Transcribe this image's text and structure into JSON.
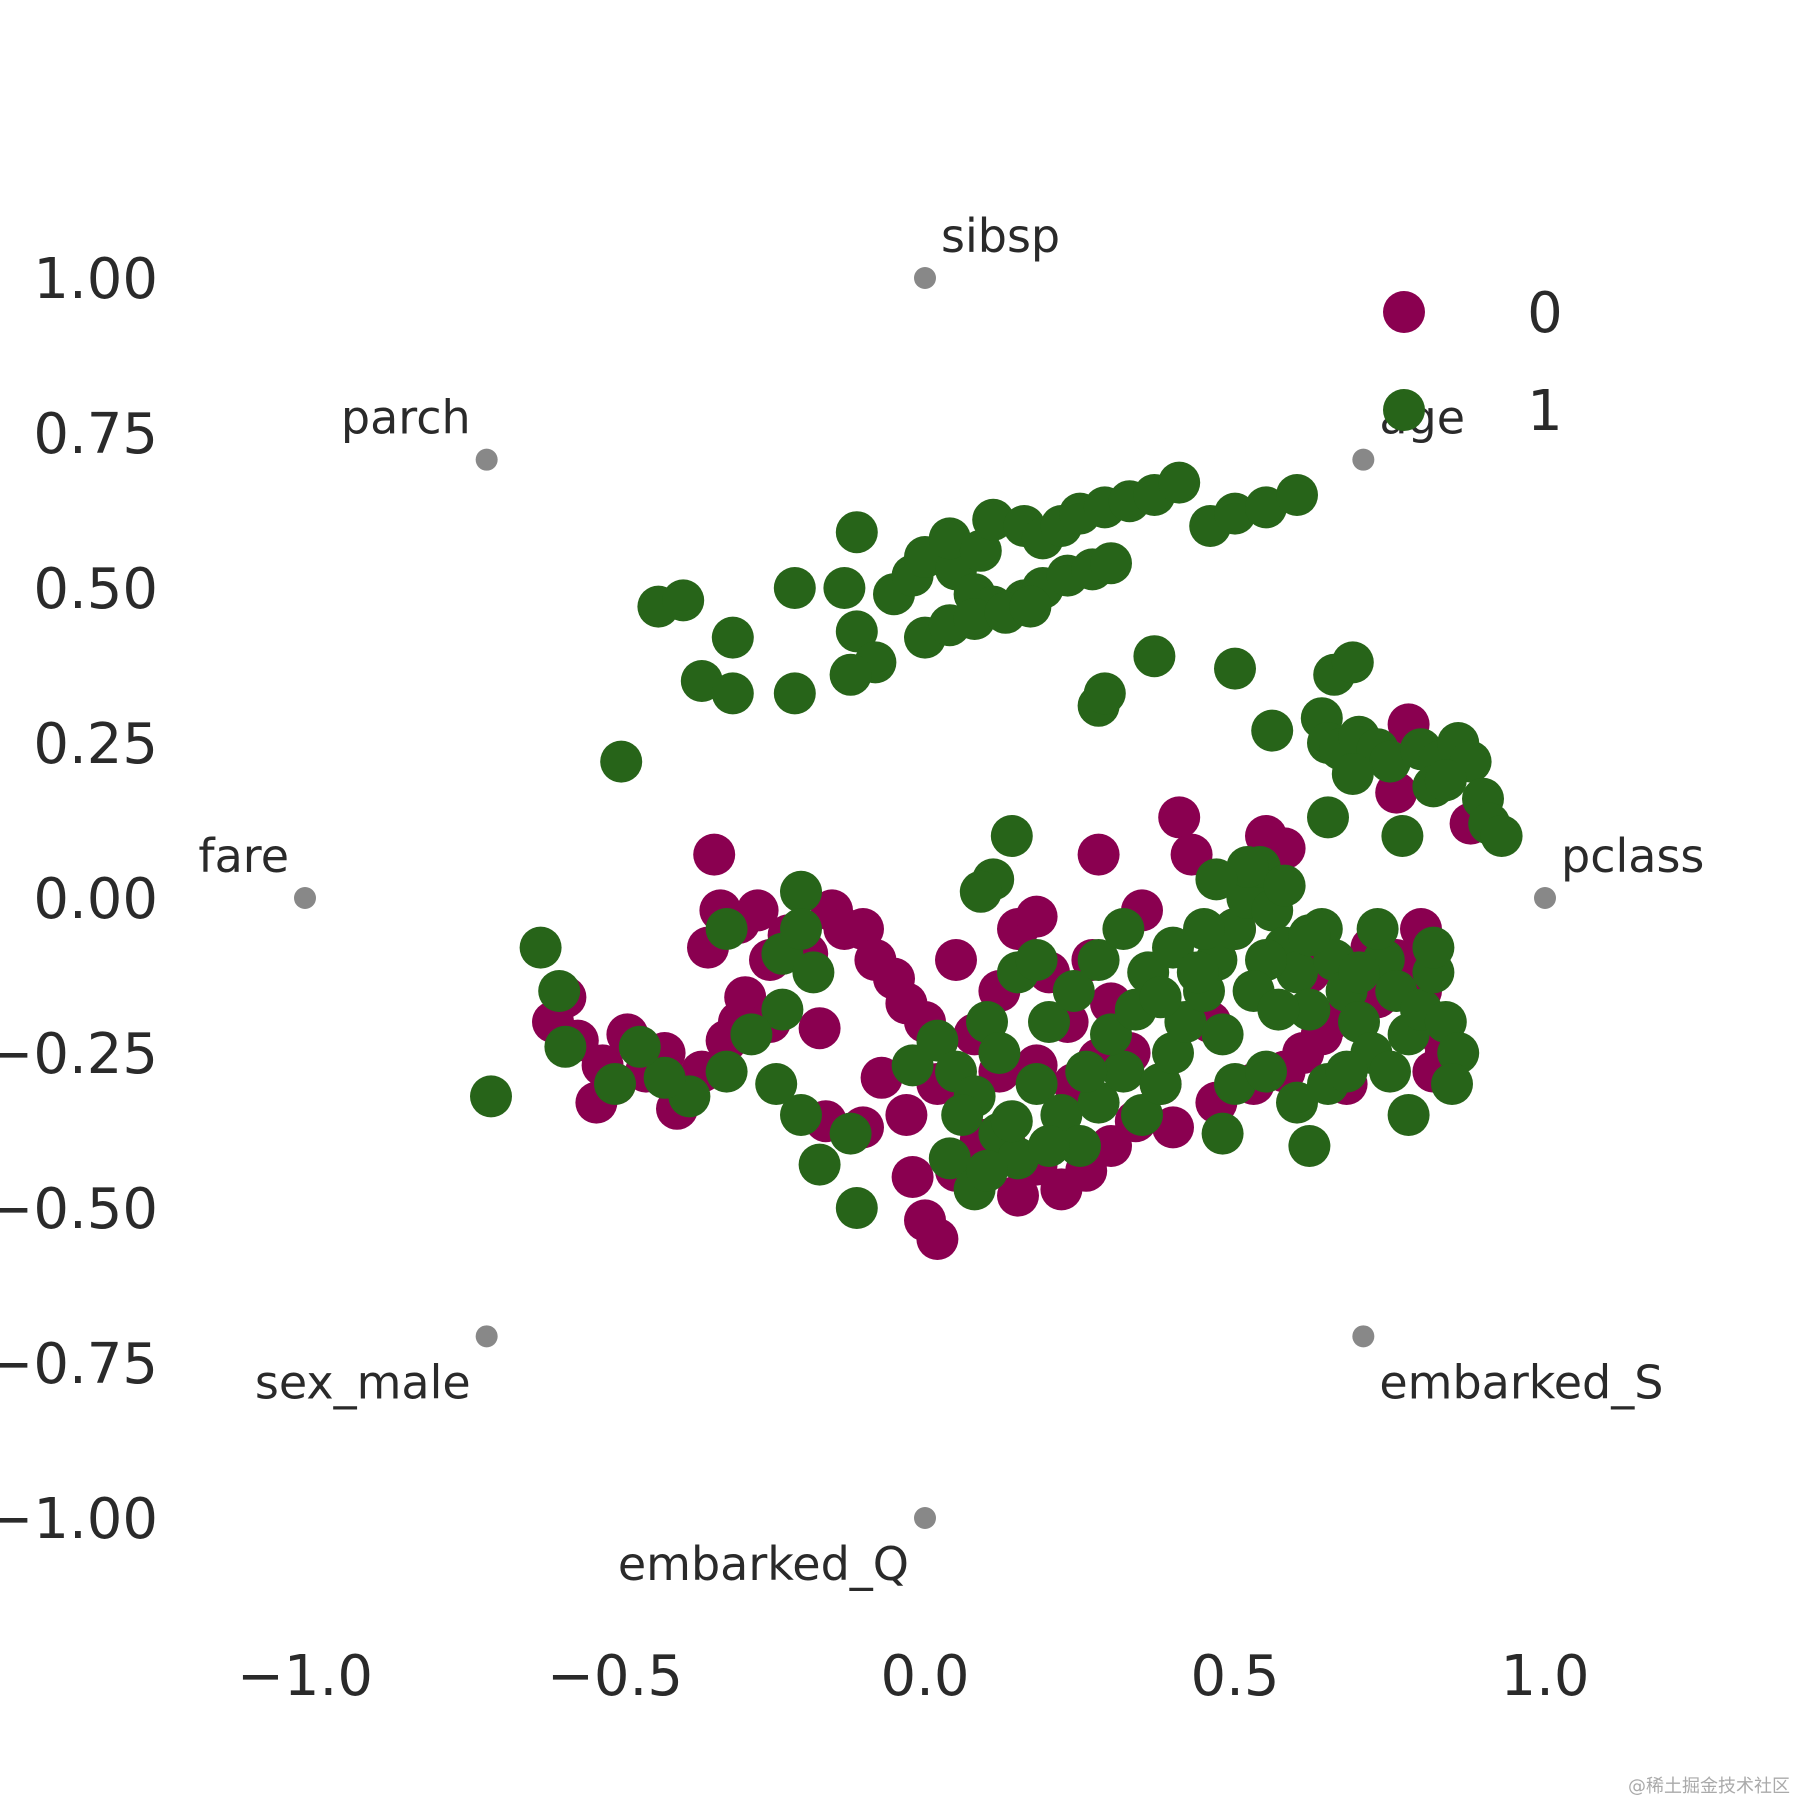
{
  "chart_data": {
    "type": "scatter",
    "title": "",
    "xlabel": "",
    "ylabel": "",
    "xlim": [
      -1.25,
      1.25
    ],
    "ylim": [
      -1.15,
      1.15
    ],
    "grid": false,
    "legend_position": "top-right",
    "x_ticks": [
      -1.0,
      -0.5,
      0.0,
      0.5,
      1.0
    ],
    "x_tick_labels": [
      "−1.0",
      "−0.5",
      "0.0",
      "0.5",
      "1.0"
    ],
    "y_ticks": [
      1.0,
      0.75,
      0.5,
      0.25,
      0.0,
      -0.25,
      -0.5,
      -0.75,
      -1.0
    ],
    "y_tick_labels": [
      "1.00",
      "0.75",
      "0.50",
      "0.25",
      "0.00",
      "−0.25",
      "−0.50",
      "−0.75",
      "−1.00"
    ],
    "anchors": [
      {
        "label": "pclass",
        "x": 1.0,
        "y": 0.0,
        "label_pos": "above-right"
      },
      {
        "label": "age",
        "x": 0.707,
        "y": 0.707,
        "label_pos": "above-right"
      },
      {
        "label": "sibsp",
        "x": 0.0,
        "y": 1.0,
        "label_pos": "above-right"
      },
      {
        "label": "parch",
        "x": -0.707,
        "y": 0.707,
        "label_pos": "above-left"
      },
      {
        "label": "fare",
        "x": -1.0,
        "y": 0.0,
        "label_pos": "above-left"
      },
      {
        "label": "sex_male",
        "x": -0.707,
        "y": -0.707,
        "label_pos": "below-left"
      },
      {
        "label": "embarked_Q",
        "x": 0.0,
        "y": -1.0,
        "label_pos": "below-left"
      },
      {
        "label": "embarked_S",
        "x": 0.707,
        "y": -0.707,
        "label_pos": "below-right"
      }
    ],
    "anchor_color": "#888888",
    "series": [
      {
        "name": "0",
        "color": "#8a0050",
        "points": [
          [
            -0.34,
            0.07
          ],
          [
            -0.33,
            -0.02
          ],
          [
            -0.35,
            -0.08
          ],
          [
            -0.3,
            -0.04
          ],
          [
            -0.27,
            -0.02
          ],
          [
            -0.25,
            -0.1
          ],
          [
            -0.22,
            -0.06
          ],
          [
            -0.19,
            -0.09
          ],
          [
            -0.15,
            -0.02
          ],
          [
            -0.13,
            -0.05
          ],
          [
            -0.1,
            -0.05
          ],
          [
            -0.08,
            -0.1
          ],
          [
            -0.05,
            -0.13
          ],
          [
            -0.03,
            -0.17
          ],
          [
            0.0,
            -0.2
          ],
          [
            0.05,
            -0.1
          ],
          [
            0.08,
            -0.22
          ],
          [
            0.12,
            -0.15
          ],
          [
            0.15,
            -0.05
          ],
          [
            0.18,
            -0.03
          ],
          [
            0.2,
            -0.12
          ],
          [
            0.23,
            -0.2
          ],
          [
            0.27,
            -0.1
          ],
          [
            0.3,
            -0.17
          ],
          [
            0.33,
            -0.25
          ],
          [
            0.35,
            -0.02
          ],
          [
            0.38,
            -0.3
          ],
          [
            0.41,
            0.13
          ],
          [
            0.43,
            0.07
          ],
          [
            0.46,
            -0.2
          ],
          [
            0.5,
            -0.05
          ],
          [
            0.55,
            0.1
          ],
          [
            0.58,
            0.08
          ],
          [
            0.62,
            -0.12
          ],
          [
            0.65,
            -0.2
          ],
          [
            0.68,
            -0.3
          ],
          [
            0.72,
            -0.08
          ],
          [
            0.76,
            -0.1
          ],
          [
            0.8,
            -0.15
          ],
          [
            0.83,
            -0.22
          ],
          [
            0.78,
            0.28
          ],
          [
            0.76,
            0.17
          ],
          [
            0.88,
            0.12
          ],
          [
            0.28,
            0.07
          ],
          [
            -0.5,
            -0.3
          ],
          [
            -0.52,
            -0.27
          ],
          [
            -0.48,
            -0.22
          ],
          [
            -0.45,
            -0.28
          ],
          [
            -0.42,
            -0.25
          ],
          [
            -0.4,
            -0.34
          ],
          [
            -0.38,
            -0.3
          ],
          [
            -0.36,
            -0.28
          ],
          [
            -0.32,
            -0.23
          ],
          [
            -0.3,
            -0.2
          ],
          [
            -0.29,
            -0.16
          ],
          [
            -0.25,
            -0.2
          ],
          [
            -0.53,
            -0.33
          ],
          [
            -0.56,
            -0.23
          ],
          [
            -0.6,
            -0.2
          ],
          [
            -0.58,
            -0.16
          ],
          [
            -0.17,
            -0.21
          ],
          [
            -0.16,
            -0.36
          ],
          [
            -0.1,
            -0.37
          ],
          [
            -0.07,
            -0.29
          ],
          [
            -0.03,
            -0.35
          ],
          [
            0.02,
            -0.3
          ],
          [
            -0.02,
            -0.45
          ],
          [
            0.0,
            -0.52
          ],
          [
            0.02,
            -0.55
          ],
          [
            0.05,
            -0.44
          ],
          [
            0.09,
            -0.39
          ],
          [
            0.13,
            -0.4
          ],
          [
            0.15,
            -0.48
          ],
          [
            0.18,
            -0.43
          ],
          [
            0.22,
            -0.47
          ],
          [
            0.26,
            -0.44
          ],
          [
            0.3,
            -0.4
          ],
          [
            0.34,
            -0.36
          ],
          [
            0.4,
            -0.37
          ],
          [
            0.47,
            -0.33
          ],
          [
            0.53,
            -0.3
          ],
          [
            0.58,
            -0.28
          ],
          [
            0.61,
            -0.25
          ],
          [
            0.64,
            -0.22
          ],
          [
            0.69,
            -0.18
          ],
          [
            0.73,
            -0.16
          ],
          [
            0.8,
            -0.05
          ],
          [
            0.82,
            -0.28
          ],
          [
            0.84,
            -0.25
          ],
          [
            0.12,
            -0.28
          ],
          [
            0.18,
            -0.27
          ],
          [
            0.24,
            -0.3
          ],
          [
            0.28,
            -0.26
          ]
        ]
      },
      {
        "name": "1",
        "color": "#276419",
        "points": [
          [
            -0.43,
            0.47
          ],
          [
            -0.39,
            0.48
          ],
          [
            -0.31,
            0.42
          ],
          [
            -0.36,
            0.35
          ],
          [
            -0.31,
            0.33
          ],
          [
            -0.21,
            0.5
          ],
          [
            -0.21,
            0.33
          ],
          [
            -0.11,
            0.59
          ],
          [
            -0.13,
            0.5
          ],
          [
            -0.11,
            0.43
          ],
          [
            -0.08,
            0.38
          ],
          [
            -0.12,
            0.36
          ],
          [
            -0.05,
            0.49
          ],
          [
            -0.02,
            0.52
          ],
          [
            0.0,
            0.55
          ],
          [
            0.05,
            0.53
          ],
          [
            0.08,
            0.49
          ],
          [
            0.11,
            0.47
          ],
          [
            0.16,
            0.48
          ],
          [
            0.19,
            0.5
          ],
          [
            0.23,
            0.52
          ],
          [
            0.27,
            0.53
          ],
          [
            0.3,
            0.54
          ],
          [
            0.04,
            0.58
          ],
          [
            0.09,
            0.56
          ],
          [
            0.11,
            0.61
          ],
          [
            0.16,
            0.6
          ],
          [
            0.19,
            0.58
          ],
          [
            0.22,
            0.6
          ],
          [
            0.25,
            0.62
          ],
          [
            0.29,
            0.63
          ],
          [
            0.33,
            0.64
          ],
          [
            0.37,
            0.65
          ],
          [
            0.41,
            0.67
          ],
          [
            0.46,
            0.6
          ],
          [
            0.5,
            0.62
          ],
          [
            0.55,
            0.63
          ],
          [
            0.6,
            0.65
          ],
          [
            0.0,
            0.42
          ],
          [
            0.04,
            0.44
          ],
          [
            0.08,
            0.45
          ],
          [
            0.13,
            0.46
          ],
          [
            0.17,
            0.47
          ],
          [
            0.37,
            0.39
          ],
          [
            0.28,
            0.31
          ],
          [
            0.29,
            0.33
          ],
          [
            0.5,
            0.37
          ],
          [
            0.56,
            0.27
          ],
          [
            0.66,
            0.36
          ],
          [
            0.69,
            0.38
          ],
          [
            0.64,
            0.29
          ],
          [
            0.65,
            0.25
          ],
          [
            0.67,
            0.24
          ],
          [
            0.7,
            0.26
          ],
          [
            0.73,
            0.24
          ],
          [
            0.75,
            0.22
          ],
          [
            0.8,
            0.24
          ],
          [
            0.83,
            0.22
          ],
          [
            0.86,
            0.25
          ],
          [
            0.88,
            0.22
          ],
          [
            0.82,
            0.18
          ],
          [
            0.84,
            0.19
          ],
          [
            0.9,
            0.16
          ],
          [
            0.91,
            0.12
          ],
          [
            0.93,
            0.1
          ],
          [
            0.65,
            0.13
          ],
          [
            0.69,
            0.2
          ],
          [
            0.77,
            0.1
          ],
          [
            -0.49,
            0.22
          ],
          [
            0.14,
            0.1
          ],
          [
            0.11,
            0.03
          ],
          [
            0.09,
            0.01
          ],
          [
            -0.2,
            0.01
          ],
          [
            -0.32,
            -0.05
          ],
          [
            -0.23,
            -0.09
          ],
          [
            -0.2,
            -0.05
          ],
          [
            -0.18,
            -0.12
          ],
          [
            -0.23,
            -0.18
          ],
          [
            -0.28,
            -0.22
          ],
          [
            -0.32,
            -0.28
          ],
          [
            -0.38,
            -0.32
          ],
          [
            -0.42,
            -0.29
          ],
          [
            -0.46,
            -0.24
          ],
          [
            -0.5,
            -0.3
          ],
          [
            -0.58,
            -0.24
          ],
          [
            -0.62,
            -0.08
          ],
          [
            -0.59,
            -0.15
          ],
          [
            -0.7,
            -0.32
          ],
          [
            -0.2,
            -0.35
          ],
          [
            -0.17,
            -0.43
          ],
          [
            -0.12,
            -0.38
          ],
          [
            -0.11,
            -0.5
          ],
          [
            -0.24,
            -0.3
          ],
          [
            -0.02,
            -0.27
          ],
          [
            0.02,
            -0.23
          ],
          [
            0.05,
            -0.28
          ],
          [
            0.08,
            -0.32
          ],
          [
            0.12,
            -0.38
          ],
          [
            0.15,
            -0.42
          ],
          [
            0.18,
            -0.3
          ],
          [
            0.22,
            -0.35
          ],
          [
            0.25,
            -0.4
          ],
          [
            0.28,
            -0.33
          ],
          [
            0.32,
            -0.28
          ],
          [
            0.35,
            -0.35
          ],
          [
            0.38,
            -0.3
          ],
          [
            0.4,
            -0.25
          ],
          [
            0.42,
            -0.2
          ],
          [
            0.45,
            -0.15
          ],
          [
            0.47,
            -0.1
          ],
          [
            0.5,
            -0.05
          ],
          [
            0.52,
            0.0
          ],
          [
            0.54,
            0.05
          ],
          [
            0.56,
            -0.02
          ],
          [
            0.58,
            -0.08
          ],
          [
            0.6,
            -0.12
          ],
          [
            0.62,
            -0.18
          ],
          [
            0.64,
            -0.05
          ],
          [
            0.66,
            -0.1
          ],
          [
            0.68,
            -0.15
          ],
          [
            0.7,
            -0.2
          ],
          [
            0.72,
            -0.25
          ],
          [
            0.74,
            -0.1
          ],
          [
            0.76,
            -0.15
          ],
          [
            0.78,
            -0.22
          ],
          [
            0.8,
            -0.18
          ],
          [
            0.82,
            -0.12
          ],
          [
            0.84,
            -0.2
          ],
          [
            0.86,
            -0.25
          ],
          [
            0.45,
            -0.05
          ],
          [
            0.48,
            -0.22
          ],
          [
            0.5,
            -0.3
          ],
          [
            0.48,
            -0.38
          ],
          [
            0.55,
            -0.28
          ],
          [
            0.6,
            -0.33
          ],
          [
            0.62,
            -0.4
          ],
          [
            0.65,
            -0.3
          ],
          [
            0.7,
            -0.12
          ],
          [
            0.73,
            -0.05
          ],
          [
            0.78,
            -0.35
          ],
          [
            0.82,
            -0.08
          ],
          [
            0.85,
            -0.3
          ],
          [
            0.2,
            -0.2
          ],
          [
            0.24,
            -0.15
          ],
          [
            0.28,
            -0.1
          ],
          [
            0.32,
            -0.05
          ],
          [
            0.36,
            -0.12
          ],
          [
            0.4,
            -0.08
          ],
          [
            0.44,
            -0.12
          ],
          [
            0.15,
            -0.12
          ],
          [
            0.18,
            -0.1
          ],
          [
            0.1,
            -0.2
          ],
          [
            0.12,
            -0.25
          ],
          [
            0.06,
            -0.35
          ],
          [
            0.04,
            -0.42
          ],
          [
            0.08,
            -0.47
          ],
          [
            0.1,
            -0.44
          ],
          [
            0.14,
            -0.36
          ],
          [
            0.2,
            -0.4
          ],
          [
            0.26,
            -0.28
          ],
          [
            0.3,
            -0.22
          ],
          [
            0.34,
            -0.18
          ],
          [
            0.38,
            -0.16
          ],
          [
            0.58,
            0.02
          ],
          [
            0.52,
            0.05
          ],
          [
            0.47,
            0.03
          ],
          [
            0.55,
            -0.1
          ],
          [
            0.62,
            -0.06
          ],
          [
            0.68,
            -0.28
          ],
          [
            0.75,
            -0.28
          ],
          [
            0.53,
            -0.15
          ],
          [
            0.57,
            -0.18
          ]
        ]
      }
    ]
  },
  "watermark": "@稀土掘金技术社区"
}
